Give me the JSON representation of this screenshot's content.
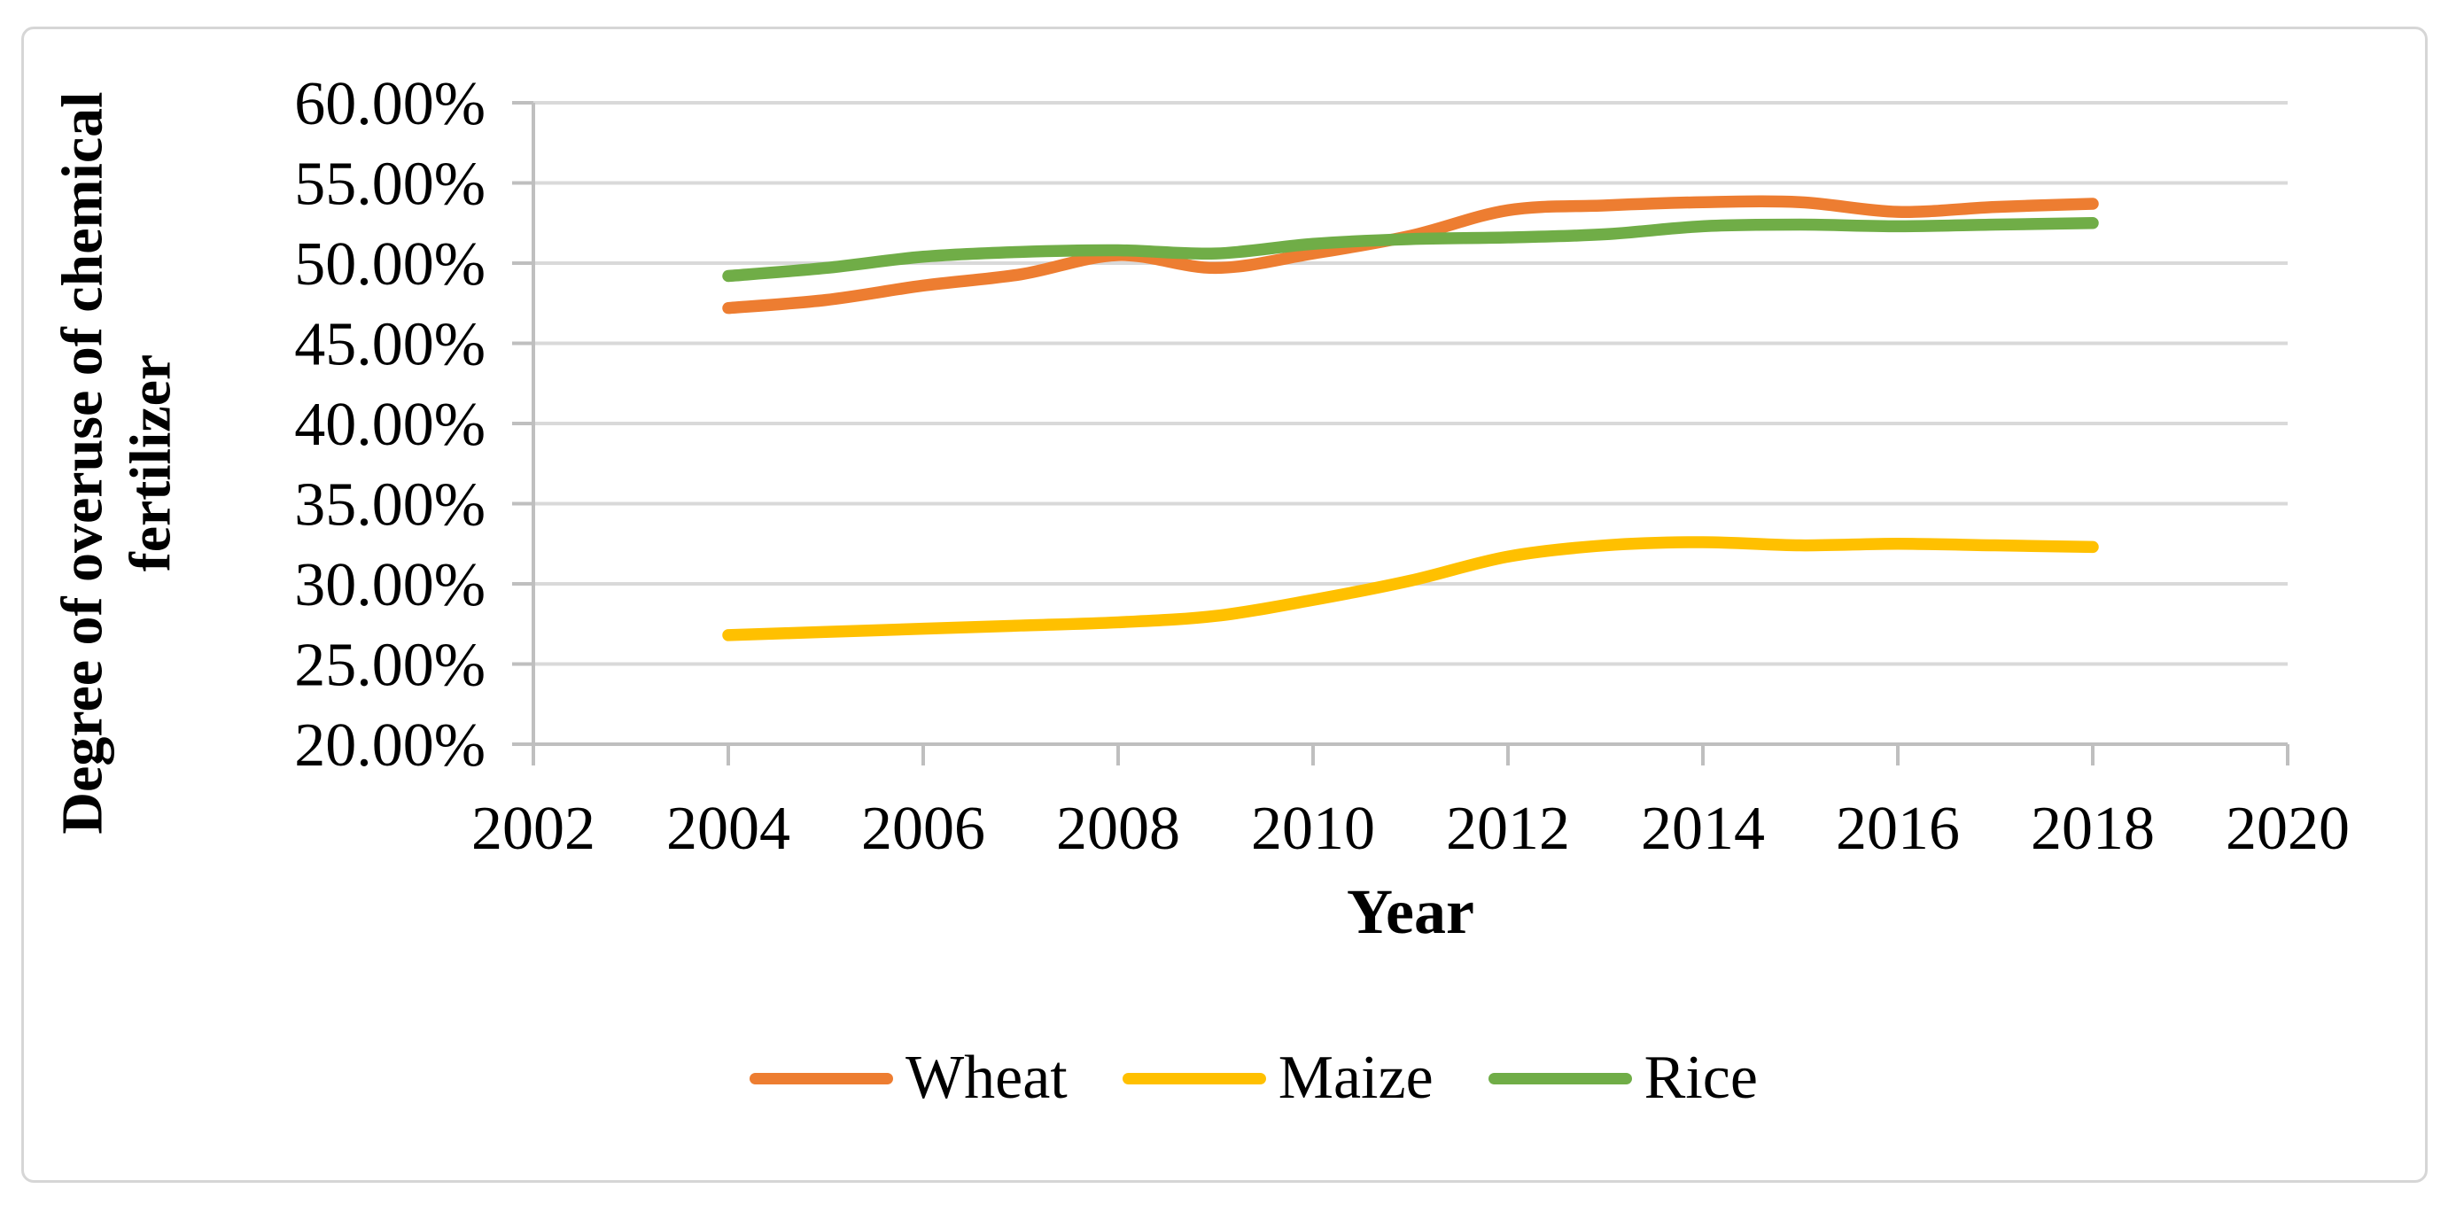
{
  "figure": {
    "y_axis_title_line1": "Degree of overuse of chemical",
    "y_axis_title_line2": "fertilizer",
    "x_axis_title": "Year"
  },
  "chart_data": {
    "type": "line",
    "title": "",
    "xlabel": "Year",
    "ylabel": "Degree of overuse of chemical fertilizer",
    "xlim": [
      2002,
      2020
    ],
    "ylim": [
      20,
      60
    ],
    "grid": "horizontal-only",
    "legend_position": "bottom-center",
    "grid_color": "#D9D9D9",
    "axis_color": "#BFBFBF",
    "text_color": "#000000",
    "x_ticks": [
      2002,
      2004,
      2006,
      2008,
      2010,
      2012,
      2014,
      2016,
      2018,
      2020
    ],
    "y_ticks": [
      {
        "value": 60,
        "label": "60.00%"
      },
      {
        "value": 55,
        "label": "55.00%"
      },
      {
        "value": 50,
        "label": "50.00%"
      },
      {
        "value": 45,
        "label": "45.00%"
      },
      {
        "value": 40,
        "label": "40.00%"
      },
      {
        "value": 35,
        "label": "35.00%"
      },
      {
        "value": 30,
        "label": "30.00%"
      },
      {
        "value": 25,
        "label": "25.00%"
      },
      {
        "value": 20,
        "label": "20.00%"
      }
    ],
    "x": [
      2004,
      2005,
      2006,
      2007,
      2008,
      2009,
      2010,
      2011,
      2012,
      2013,
      2014,
      2015,
      2016,
      2017,
      2018
    ],
    "series": [
      {
        "name": "Wheat",
        "color": "#ED7D31",
        "values": [
          47.2,
          47.7,
          48.6,
          49.3,
          50.5,
          49.7,
          50.6,
          51.7,
          53.3,
          53.6,
          53.8,
          53.8,
          53.2,
          53.5,
          53.7
        ]
      },
      {
        "name": "Maize",
        "color": "#FFC000",
        "values": [
          26.8,
          27.0,
          27.2,
          27.4,
          27.6,
          28.0,
          29.0,
          30.2,
          31.7,
          32.4,
          32.6,
          32.4,
          32.5,
          32.4,
          32.3
        ]
      },
      {
        "name": "Rice",
        "color": "#70AD47",
        "values": [
          49.2,
          49.7,
          50.4,
          50.7,
          50.8,
          50.6,
          51.2,
          51.5,
          51.6,
          51.8,
          52.3,
          52.4,
          52.3,
          52.4,
          52.5
        ]
      }
    ]
  }
}
